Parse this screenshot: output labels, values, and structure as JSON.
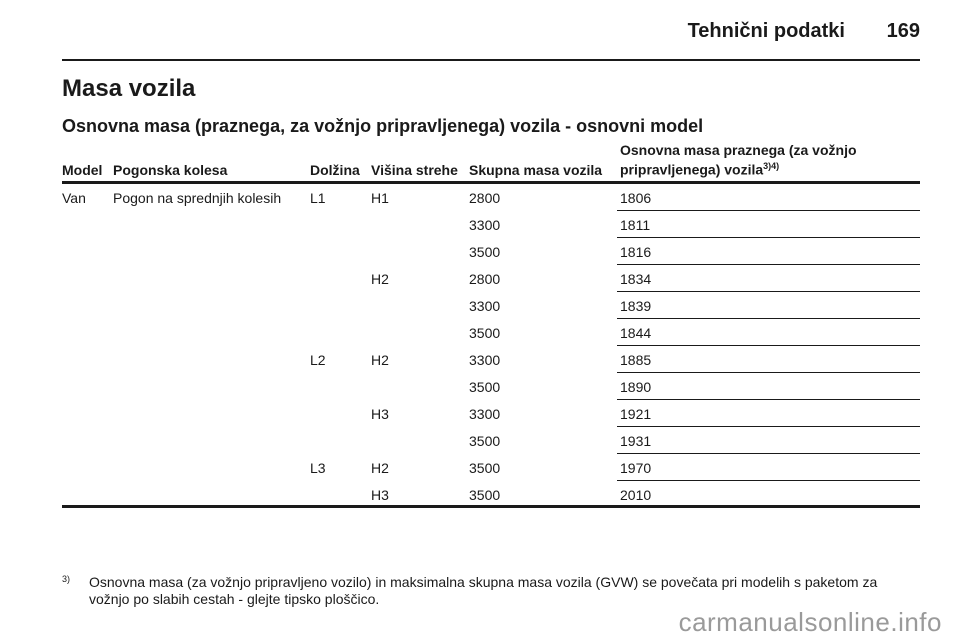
{
  "header": {
    "title": "Tehnični podatki",
    "page_number": "169"
  },
  "section_title": "Masa vozila",
  "subtitle": "Osnovna masa (praznega, za vožnjo pripravljenega) vozila - osnovni model",
  "table": {
    "columns": {
      "model": "Model",
      "drive": "Pogonska kolesa",
      "length": "Dolžina",
      "roof_height": "Višina strehe",
      "gvw": "Skupna masa vozila",
      "mass_line1": "Osnovna masa praznega (za vožnjo",
      "mass_line2": "pripravljenega) vozila",
      "mass_footnotes": "3)4)"
    },
    "rows": [
      {
        "model": "Van",
        "drive": "Pogon na sprednjih kolesih",
        "length": "L1",
        "height": "H1",
        "gvw": "2800",
        "mass": "1806"
      },
      {
        "model": "",
        "drive": "",
        "length": "",
        "height": "",
        "gvw": "3300",
        "mass": "1811"
      },
      {
        "model": "",
        "drive": "",
        "length": "",
        "height": "",
        "gvw": "3500",
        "mass": "1816"
      },
      {
        "model": "",
        "drive": "",
        "length": "",
        "height": "H2",
        "gvw": "2800",
        "mass": "1834"
      },
      {
        "model": "",
        "drive": "",
        "length": "",
        "height": "",
        "gvw": "3300",
        "mass": "1839"
      },
      {
        "model": "",
        "drive": "",
        "length": "",
        "height": "",
        "gvw": "3500",
        "mass": "1844"
      },
      {
        "model": "",
        "drive": "",
        "length": "L2",
        "height": "H2",
        "gvw": "3300",
        "mass": "1885"
      },
      {
        "model": "",
        "drive": "",
        "length": "",
        "height": "",
        "gvw": "3500",
        "mass": "1890"
      },
      {
        "model": "",
        "drive": "",
        "length": "",
        "height": "H3",
        "gvw": "3300",
        "mass": "1921"
      },
      {
        "model": "",
        "drive": "",
        "length": "",
        "height": "",
        "gvw": "3500",
        "mass": "1931"
      },
      {
        "model": "",
        "drive": "",
        "length": "L3",
        "height": "H2",
        "gvw": "3500",
        "mass": "1970"
      },
      {
        "model": "",
        "drive": "",
        "length": "",
        "height": "H3",
        "gvw": "3500",
        "mass": "2010"
      }
    ]
  },
  "footnote": {
    "mark": "3)",
    "text": "Osnovna masa (za vožnjo pripravljeno vozilo) in maksimalna skupna masa vozila (GVW) se povečata pri modelih s paketom za vožnjo po slabih cestah - glejte tipsko ploščico."
  },
  "watermark": "carmanualsonline.info"
}
